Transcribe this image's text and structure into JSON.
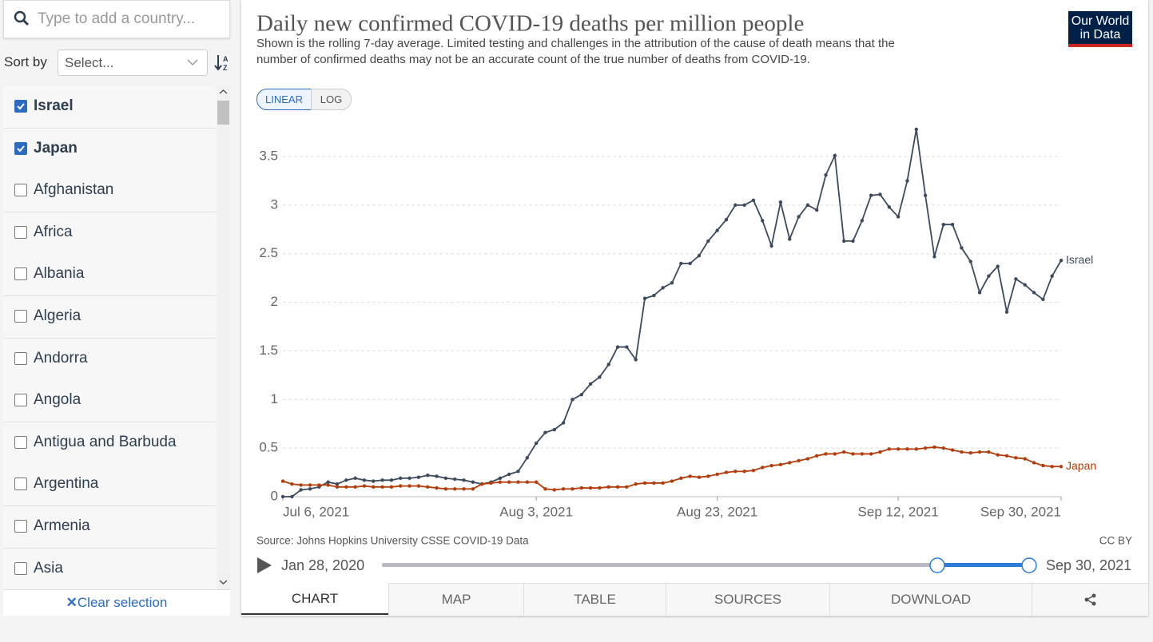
{
  "sidebar": {
    "search_placeholder": "Type to add a country...",
    "sort_label": "Sort by",
    "sort_select": "Select...",
    "countries": [
      {
        "name": "Israel",
        "checked": true
      },
      {
        "name": "Japan",
        "checked": true
      },
      {
        "name": "Afghanistan",
        "checked": false
      },
      {
        "name": "Africa",
        "checked": false
      },
      {
        "name": "Albania",
        "checked": false
      },
      {
        "name": "Algeria",
        "checked": false
      },
      {
        "name": "Andorra",
        "checked": false
      },
      {
        "name": "Angola",
        "checked": false
      },
      {
        "name": "Antigua and Barbuda",
        "checked": false
      },
      {
        "name": "Argentina",
        "checked": false
      },
      {
        "name": "Armenia",
        "checked": false
      },
      {
        "name": "Asia",
        "checked": false
      }
    ],
    "clear": "Clear selection"
  },
  "logo": {
    "line1": "Our World",
    "line2": "in Data"
  },
  "scale_buttons": [
    "LINEAR",
    "LOG"
  ],
  "chart_data": {
    "type": "line",
    "title": "Daily new confirmed COVID-19 deaths per million people",
    "subtitle": "Shown is the rolling 7-day average. Limited testing and challenges in the attribution of the cause of death means that the number of confirmed deaths may not be an accurate count of the true number of deaths from COVID-19.",
    "x": [
      "Jul 6, 2021",
      "Jul 7, 2021",
      "Jul 8, 2021",
      "Jul 9, 2021",
      "Jul 10, 2021",
      "Jul 11, 2021",
      "Jul 12, 2021",
      "Jul 13, 2021",
      "Jul 14, 2021",
      "Jul 15, 2021",
      "Jul 16, 2021",
      "Jul 17, 2021",
      "Jul 18, 2021",
      "Jul 19, 2021",
      "Jul 20, 2021",
      "Jul 21, 2021",
      "Jul 22, 2021",
      "Jul 23, 2021",
      "Jul 24, 2021",
      "Jul 25, 2021",
      "Jul 26, 2021",
      "Jul 27, 2021",
      "Jul 28, 2021",
      "Jul 29, 2021",
      "Jul 30, 2021",
      "Jul 31, 2021",
      "Aug 1, 2021",
      "Aug 2, 2021",
      "Aug 3, 2021",
      "Aug 4, 2021",
      "Aug 5, 2021",
      "Aug 6, 2021",
      "Aug 7, 2021",
      "Aug 8, 2021",
      "Aug 9, 2021",
      "Aug 10, 2021",
      "Aug 11, 2021",
      "Aug 12, 2021",
      "Aug 13, 2021",
      "Aug 14, 2021",
      "Aug 15, 2021",
      "Aug 16, 2021",
      "Aug 17, 2021",
      "Aug 18, 2021",
      "Aug 19, 2021",
      "Aug 20, 2021",
      "Aug 21, 2021",
      "Aug 22, 2021",
      "Aug 23, 2021",
      "Aug 24, 2021",
      "Aug 25, 2021",
      "Aug 26, 2021",
      "Aug 27, 2021",
      "Aug 28, 2021",
      "Aug 29, 2021",
      "Aug 30, 2021",
      "Aug 31, 2021",
      "Sep 1, 2021",
      "Sep 2, 2021",
      "Sep 3, 2021",
      "Sep 4, 2021",
      "Sep 5, 2021",
      "Sep 6, 2021",
      "Sep 7, 2021",
      "Sep 8, 2021",
      "Sep 9, 2021",
      "Sep 10, 2021",
      "Sep 11, 2021",
      "Sep 12, 2021",
      "Sep 13, 2021",
      "Sep 14, 2021",
      "Sep 15, 2021",
      "Sep 16, 2021",
      "Sep 17, 2021",
      "Sep 18, 2021",
      "Sep 19, 2021",
      "Sep 20, 2021",
      "Sep 21, 2021",
      "Sep 22, 2021",
      "Sep 23, 2021",
      "Sep 24, 2021",
      "Sep 25, 2021",
      "Sep 26, 2021",
      "Sep 27, 2021",
      "Sep 28, 2021",
      "Sep 29, 2021",
      "Sep 30, 2021"
    ],
    "series": [
      {
        "name": "Israel",
        "color": "#3b4a5c",
        "values": [
          0,
          0,
          0.07,
          0.08,
          0.1,
          0.15,
          0.13,
          0.17,
          0.19,
          0.17,
          0.16,
          0.17,
          0.17,
          0.19,
          0.19,
          0.2,
          0.22,
          0.21,
          0.19,
          0.18,
          0.17,
          0.15,
          0.13,
          0.15,
          0.19,
          0.23,
          0.26,
          0.4,
          0.55,
          0.66,
          0.69,
          0.76,
          1.0,
          1.05,
          1.16,
          1.23,
          1.36,
          1.54,
          1.54,
          1.41,
          2.04,
          2.07,
          2.15,
          2.2,
          2.4,
          2.4,
          2.48,
          2.63,
          2.74,
          2.85,
          3.0,
          3.0,
          3.05,
          2.84,
          2.58,
          3.03,
          2.65,
          2.88,
          3.0,
          2.95,
          3.31,
          3.51,
          2.63,
          2.63,
          2.84,
          3.1,
          3.11,
          2.98,
          2.88,
          3.25,
          3.78,
          3.1,
          2.47,
          2.8,
          2.8,
          2.56,
          2.42,
          2.1,
          2.27,
          2.37,
          1.9,
          2.24,
          2.18,
          2.1,
          2.03,
          2.27,
          2.43
        ]
      },
      {
        "name": "Japan",
        "color": "#b33c0a",
        "values": [
          0.16,
          0.13,
          0.12,
          0.12,
          0.12,
          0.12,
          0.1,
          0.1,
          0.1,
          0.11,
          0.1,
          0.1,
          0.1,
          0.11,
          0.11,
          0.11,
          0.1,
          0.09,
          0.08,
          0.08,
          0.08,
          0.08,
          0.13,
          0.14,
          0.15,
          0.15,
          0.15,
          0.15,
          0.15,
          0.08,
          0.07,
          0.08,
          0.08,
          0.09,
          0.09,
          0.09,
          0.1,
          0.1,
          0.1,
          0.13,
          0.14,
          0.14,
          0.14,
          0.16,
          0.19,
          0.21,
          0.2,
          0.21,
          0.23,
          0.25,
          0.26,
          0.26,
          0.27,
          0.3,
          0.32,
          0.33,
          0.35,
          0.37,
          0.39,
          0.42,
          0.44,
          0.44,
          0.46,
          0.44,
          0.44,
          0.44,
          0.46,
          0.49,
          0.49,
          0.49,
          0.49,
          0.5,
          0.51,
          0.5,
          0.48,
          0.46,
          0.45,
          0.46,
          0.46,
          0.43,
          0.42,
          0.4,
          0.39,
          0.35,
          0.32,
          0.31,
          0.31
        ]
      }
    ],
    "xticks": [
      "Jul 6, 2021",
      "Aug 3, 2021",
      "Aug 23, 2021",
      "Sep 12, 2021",
      "Sep 30, 2021"
    ],
    "ylim": [
      0,
      3.8
    ],
    "yticks": [
      0,
      0.5,
      1,
      1.5,
      2,
      2.5,
      3,
      3.5
    ],
    "grid": true,
    "source": "Source: Johns Hopkins University CSSE COVID-19 Data",
    "license": "CC BY"
  },
  "timeline": {
    "start": "Jan 28, 2020",
    "end": "Sep 30, 2021"
  },
  "tabs": [
    "CHART",
    "MAP",
    "TABLE",
    "SOURCES",
    "DOWNLOAD"
  ]
}
